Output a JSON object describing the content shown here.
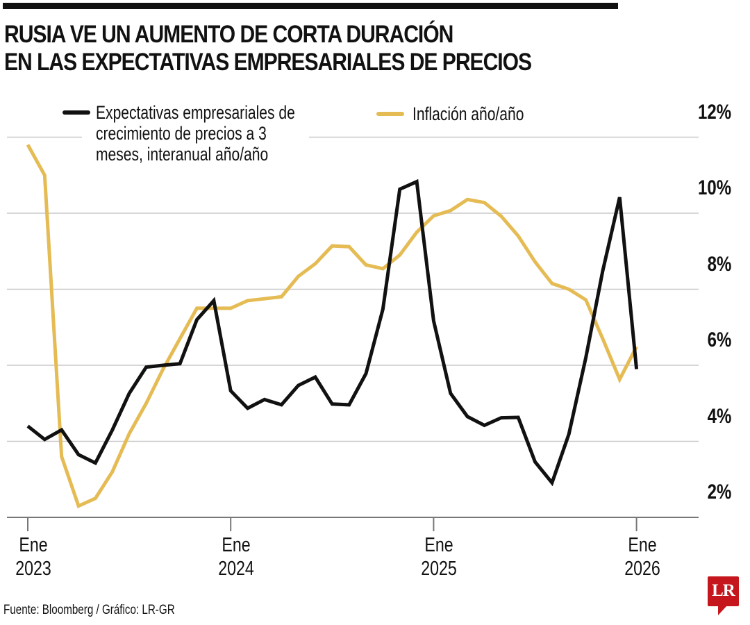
{
  "header": {
    "title_line1": "RUSIA VE UN AUMENTO DE CORTA DURACIÓN",
    "title_line2": "EN LAS EXPECTATIVAS EMPRESARIALES DE PRECIOS"
  },
  "legend": {
    "series1_line1": "Expectativas empresariales de",
    "series1_line2": "crecimiento de precios a 3",
    "series1_line3": "meses, interanual año/año",
    "series2": "Inflación año/año"
  },
  "footer": {
    "source": "Fuente: Bloomberg / Gráfico: LR-GR"
  },
  "logo": {
    "text": "LR"
  },
  "colors": {
    "expectations": "#111111",
    "inflation": "#e5bb54",
    "grid": "#c8c8c8",
    "axis": "#777777",
    "logo_red": "#c4161c"
  },
  "chart_data": {
    "type": "line",
    "title": "RUSIA VE UN AUMENTO DE CORTA DURACIÓN EN LAS EXPECTATIVAS EMPRESARIALES DE PRECIOS",
    "xlabel": "",
    "ylabel": "",
    "x_start": "2023-01",
    "x_frequency": "monthly",
    "x": [
      "2023-01",
      "2023-02",
      "2023-03",
      "2023-04",
      "2023-05",
      "2023-06",
      "2023-07",
      "2023-08",
      "2023-09",
      "2023-10",
      "2023-11",
      "2023-12",
      "2024-01",
      "2024-02",
      "2024-03",
      "2024-04",
      "2024-05",
      "2024-06",
      "2024-07",
      "2024-08",
      "2024-09",
      "2024-10",
      "2024-11",
      "2024-12",
      "2025-01",
      "2025-02",
      "2025-03",
      "2025-04",
      "2025-05",
      "2025-06",
      "2025-07",
      "2025-08",
      "2025-09",
      "2025-10",
      "2025-11",
      "2025-12",
      "2026-01"
    ],
    "x_ticks": [
      {
        "month_index": 0,
        "line1": "Ene",
        "line2": "2023"
      },
      {
        "month_index": 12,
        "line1": "Ene",
        "line2": "2024"
      },
      {
        "month_index": 24,
        "line1": "Ene",
        "line2": "2025"
      },
      {
        "month_index": 36,
        "line1": "Ene",
        "line2": "2026"
      }
    ],
    "x_range_months": [
      0,
      39.5
    ],
    "y_ticks": [
      {
        "value": 2,
        "label": "2%"
      },
      {
        "value": 4,
        "label": "4%"
      },
      {
        "value": 6,
        "label": "6%"
      },
      {
        "value": 8,
        "label": "8%"
      },
      {
        "value": 10,
        "label": "10%"
      },
      {
        "value": 12,
        "label": "12%"
      }
    ],
    "ylim": [
      2,
      12
    ],
    "y_unit": "%",
    "grid": true,
    "legend_position": "top",
    "series": [
      {
        "name": "Expectativas empresariales de crecimiento de precios a 3 meses, interanual año/año",
        "color": "#111111",
        "values": [
          4.4,
          4.05,
          4.3,
          3.65,
          3.43,
          4.3,
          5.26,
          5.95,
          6.0,
          6.04,
          7.2,
          7.7,
          5.33,
          4.87,
          5.1,
          4.96,
          5.47,
          5.69,
          4.98,
          4.96,
          5.78,
          7.48,
          10.63,
          10.83,
          7.17,
          5.26,
          4.65,
          4.42,
          4.62,
          4.63,
          3.46,
          2.91,
          4.19,
          6.2,
          8.48,
          10.42,
          5.9
        ]
      },
      {
        "name": "Inflación año/año",
        "color": "#e5bb54",
        "values": [
          11.8,
          11.0,
          3.6,
          2.3,
          2.5,
          3.2,
          4.2,
          5.0,
          5.9,
          6.7,
          7.5,
          7.5,
          7.5,
          7.7,
          7.75,
          7.8,
          8.34,
          8.67,
          9.14,
          9.12,
          8.64,
          8.54,
          8.9,
          9.5,
          9.93,
          10.07,
          10.36,
          10.28,
          9.92,
          9.4,
          8.72,
          8.15,
          8.0,
          7.72,
          6.7,
          5.63,
          6.49
        ]
      }
    ]
  }
}
